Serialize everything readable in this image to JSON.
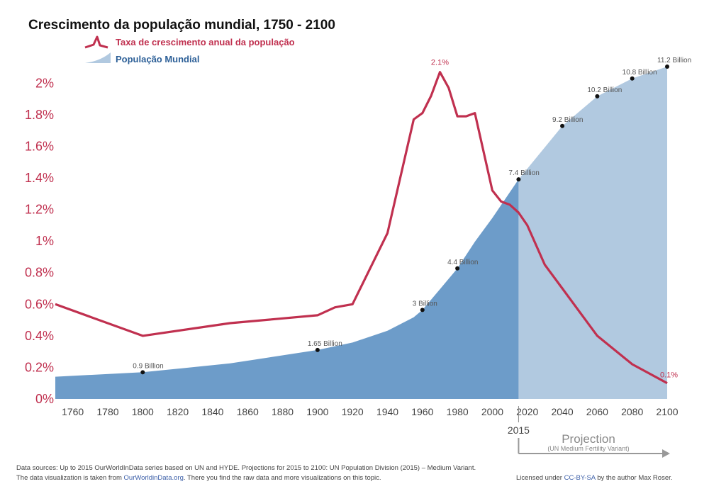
{
  "chart_data": {
    "type": "area",
    "title": "Crescimento da população mundial, 1750 - 2100",
    "legend": [
      {
        "name": "Taxa de crescimento anual da população",
        "color": "#c0304f"
      },
      {
        "name": "População Mundial",
        "color": "#2c5f97"
      }
    ],
    "legend_position": "top-left",
    "x_ticks": [
      1760,
      1780,
      1800,
      1820,
      1840,
      1860,
      1880,
      1900,
      1920,
      1940,
      1960,
      1980,
      2000,
      2020,
      2040,
      2060,
      2080,
      2100
    ],
    "y_ticks": [
      "0%",
      "0.2%",
      "0.4%",
      "0.6%",
      "0.8%",
      "1%",
      "1.2%",
      "1.4%",
      "1.6%",
      "1.8%",
      "2%"
    ],
    "xlim": [
      1750,
      2100
    ],
    "ylim_growth_rate_percent": [
      0,
      2.1
    ],
    "population_billion": {
      "x": [
        1750,
        1800,
        1850,
        1900,
        1920,
        1940,
        1955,
        1960,
        1970,
        1980,
        1990,
        2000,
        2015,
        2040,
        2060,
        2080,
        2100
      ],
      "values": [
        0.75,
        0.9,
        1.2,
        1.65,
        1.9,
        2.3,
        2.75,
        3.0,
        3.7,
        4.4,
        5.3,
        6.1,
        7.4,
        9.2,
        10.2,
        10.8,
        11.2
      ]
    },
    "population_labels": [
      {
        "x": 1800,
        "value": 0.9,
        "label": "0.9 Billion"
      },
      {
        "x": 1900,
        "value": 1.65,
        "label": "1.65 Billion"
      },
      {
        "x": 1960,
        "value": 3.0,
        "label": "3 Billion"
      },
      {
        "x": 1980,
        "value": 4.4,
        "label": "4.4 Billion"
      },
      {
        "x": 2015,
        "value": 7.4,
        "label": "7.4 Billion"
      },
      {
        "x": 2040,
        "value": 9.2,
        "label": "9.2 Billion"
      },
      {
        "x": 2060,
        "value": 10.2,
        "label": "10.2 Billion"
      },
      {
        "x": 2080,
        "value": 10.8,
        "label": "10.8 Billion"
      },
      {
        "x": 2100,
        "value": 11.2,
        "label": "11.2 Billion"
      }
    ],
    "growth_rate_percent": {
      "x": [
        1750,
        1800,
        1850,
        1900,
        1910,
        1920,
        1940,
        1955,
        1960,
        1965,
        1970,
        1975,
        1980,
        1985,
        1990,
        2000,
        2005,
        2010,
        2015,
        2020,
        2030,
        2040,
        2050,
        2060,
        2080,
        2100
      ],
      "values": [
        0.6,
        0.4,
        0.48,
        0.53,
        0.58,
        0.6,
        1.05,
        1.77,
        1.81,
        1.92,
        2.07,
        1.97,
        1.79,
        1.79,
        1.81,
        1.32,
        1.25,
        1.23,
        1.18,
        1.1,
        0.85,
        0.7,
        0.55,
        0.4,
        0.22,
        0.1
      ]
    },
    "growth_labels": [
      {
        "x": 1970,
        "value": 2.07,
        "label": "2.1%"
      },
      {
        "x": 2100,
        "value": 0.1,
        "label": "0.1%"
      }
    ],
    "projection": {
      "start": 2015,
      "start_label": "2015",
      "label": "Projection",
      "sublabel": "(UN Medium Fertility Variant)"
    }
  },
  "colors": {
    "rate_line": "#c0304f",
    "population_fill": "#6d9cc9",
    "projection_fill": "#b1c9e0",
    "legend_blue_text": "#2c5f97"
  },
  "footer": {
    "sources_line": "Data sources:  Up to 2015 OurWorldInData series based on UN and HYDE. Projections for 2015 to 2100: UN Population Division (2015) – Medium Variant.",
    "viz_prefix": "The data visualization is taken from ",
    "viz_link": "OurWorldinData.org",
    "viz_suffix": ". There you find the raw data and more visualizations on this topic.",
    "license_prefix": "Licensed under ",
    "license_link": "CC-BY-SA",
    "license_suffix": " by the author Max Roser."
  }
}
